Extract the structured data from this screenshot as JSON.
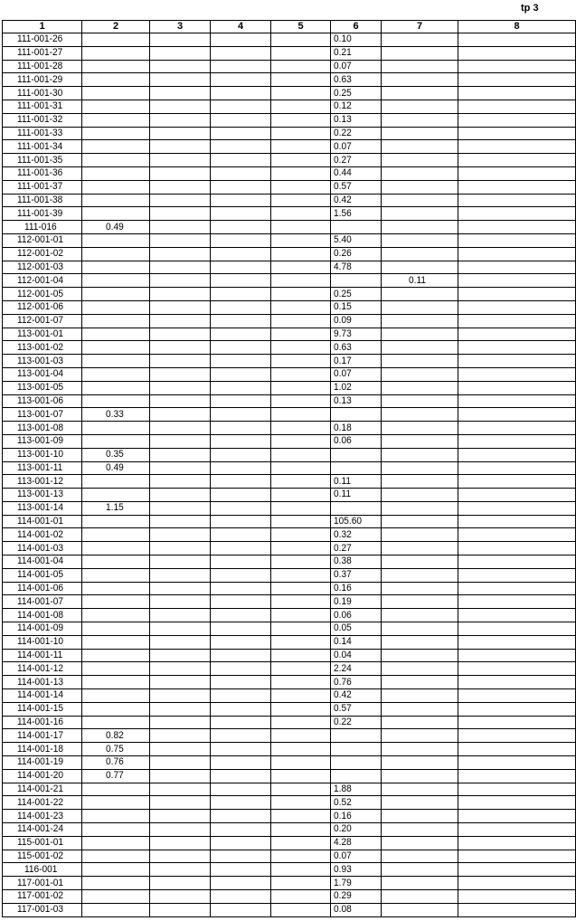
{
  "page_label": "tp 3",
  "table": {
    "headers": [
      "1",
      "2",
      "3",
      "4",
      "5",
      "6",
      "7",
      "8"
    ],
    "rows": [
      [
        "111-001-26",
        "",
        "",
        "",
        "",
        "0.10",
        "",
        ""
      ],
      [
        "111-001-27",
        "",
        "",
        "",
        "",
        "0.21",
        "",
        ""
      ],
      [
        "111-001-28",
        "",
        "",
        "",
        "",
        "0.07",
        "",
        ""
      ],
      [
        "111-001-29",
        "",
        "",
        "",
        "",
        "0.63",
        "",
        ""
      ],
      [
        "111-001-30",
        "",
        "",
        "",
        "",
        "0.25",
        "",
        ""
      ],
      [
        "111-001-31",
        "",
        "",
        "",
        "",
        "0.12",
        "",
        ""
      ],
      [
        "111-001-32",
        "",
        "",
        "",
        "",
        "0.13",
        "",
        ""
      ],
      [
        "111-001-33",
        "",
        "",
        "",
        "",
        "0.22",
        "",
        ""
      ],
      [
        "111-001-34",
        "",
        "",
        "",
        "",
        "0.07",
        "",
        ""
      ],
      [
        "111-001-35",
        "",
        "",
        "",
        "",
        "0.27",
        "",
        ""
      ],
      [
        "111-001-36",
        "",
        "",
        "",
        "",
        "0.44",
        "",
        ""
      ],
      [
        "111-001-37",
        "",
        "",
        "",
        "",
        "0.57",
        "",
        ""
      ],
      [
        "111-001-38",
        "",
        "",
        "",
        "",
        "0.42",
        "",
        ""
      ],
      [
        "111-001-39",
        "",
        "",
        "",
        "",
        "1.56",
        "",
        ""
      ],
      [
        "111-016",
        "0.49",
        "",
        "",
        "",
        "",
        "",
        ""
      ],
      [
        "112-001-01",
        "",
        "",
        "",
        "",
        "5.40",
        "",
        ""
      ],
      [
        "112-001-02",
        "",
        "",
        "",
        "",
        "0.26",
        "",
        ""
      ],
      [
        "112-001-03",
        "",
        "",
        "",
        "",
        "4.78",
        "",
        ""
      ],
      [
        "112-001-04",
        "",
        "",
        "",
        "",
        "",
        "0.11",
        ""
      ],
      [
        "112-001-05",
        "",
        "",
        "",
        "",
        "0.25",
        "",
        ""
      ],
      [
        "112-001-06",
        "",
        "",
        "",
        "",
        "0.15",
        "",
        ""
      ],
      [
        "112-001-07",
        "",
        "",
        "",
        "",
        "0.09",
        "",
        ""
      ],
      [
        "113-001-01",
        "",
        "",
        "",
        "",
        "9.73",
        "",
        ""
      ],
      [
        "113-001-02",
        "",
        "",
        "",
        "",
        "0.63",
        "",
        ""
      ],
      [
        "113-001-03",
        "",
        "",
        "",
        "",
        "0.17",
        "",
        ""
      ],
      [
        "113-001-04",
        "",
        "",
        "",
        "",
        "0.07",
        "",
        ""
      ],
      [
        "113-001-05",
        "",
        "",
        "",
        "",
        "1.02",
        "",
        ""
      ],
      [
        "113-001-06",
        "",
        "",
        "",
        "",
        "0.13",
        "",
        ""
      ],
      [
        "113-001-07",
        "0.33",
        "",
        "",
        "",
        "",
        "",
        ""
      ],
      [
        "113-001-08",
        "",
        "",
        "",
        "",
        "0.18",
        "",
        ""
      ],
      [
        "113-001-09",
        "",
        "",
        "",
        "",
        "0.06",
        "",
        ""
      ],
      [
        "113-001-10",
        "0.35",
        "",
        "",
        "",
        "",
        "",
        ""
      ],
      [
        "113-001-11",
        "0.49",
        "",
        "",
        "",
        "",
        "",
        ""
      ],
      [
        "113-001-12",
        "",
        "",
        "",
        "",
        "0.11",
        "",
        ""
      ],
      [
        "113-001-13",
        "",
        "",
        "",
        "",
        "0.11",
        "",
        ""
      ],
      [
        "113-001-14",
        "1.15",
        "",
        "",
        "",
        "",
        "",
        ""
      ],
      [
        "114-001-01",
        "",
        "",
        "",
        "",
        "105.60",
        "",
        ""
      ],
      [
        "114-001-02",
        "",
        "",
        "",
        "",
        "0.32",
        "",
        ""
      ],
      [
        "114-001-03",
        "",
        "",
        "",
        "",
        "0.27",
        "",
        ""
      ],
      [
        "114-001-04",
        "",
        "",
        "",
        "",
        "0.38",
        "",
        ""
      ],
      [
        "114-001-05",
        "",
        "",
        "",
        "",
        "0.37",
        "",
        ""
      ],
      [
        "114-001-06",
        "",
        "",
        "",
        "",
        "0.16",
        "",
        ""
      ],
      [
        "114-001-07",
        "",
        "",
        "",
        "",
        "0.19",
        "",
        ""
      ],
      [
        "114-001-08",
        "",
        "",
        "",
        "",
        "0.06",
        "",
        ""
      ],
      [
        "114-001-09",
        "",
        "",
        "",
        "",
        "0.05",
        "",
        ""
      ],
      [
        "114-001-10",
        "",
        "",
        "",
        "",
        "0.14",
        "",
        ""
      ],
      [
        "114-001-11",
        "",
        "",
        "",
        "",
        "0.04",
        "",
        ""
      ],
      [
        "114-001-12",
        "",
        "",
        "",
        "",
        "2.24",
        "",
        ""
      ],
      [
        "114-001-13",
        "",
        "",
        "",
        "",
        "0.76",
        "",
        ""
      ],
      [
        "114-001-14",
        "",
        "",
        "",
        "",
        "0.42",
        "",
        ""
      ],
      [
        "114-001-15",
        "",
        "",
        "",
        "",
        "0.57",
        "",
        ""
      ],
      [
        "114-001-16",
        "",
        "",
        "",
        "",
        "0.22",
        "",
        ""
      ],
      [
        "114-001-17",
        "0.82",
        "",
        "",
        "",
        "",
        "",
        ""
      ],
      [
        "114-001-18",
        "0.75",
        "",
        "",
        "",
        "",
        "",
        ""
      ],
      [
        "114-001-19",
        "0.76",
        "",
        "",
        "",
        "",
        "",
        ""
      ],
      [
        "114-001-20",
        "0.77",
        "",
        "",
        "",
        "",
        "",
        ""
      ],
      [
        "114-001-21",
        "",
        "",
        "",
        "",
        "1.88",
        "",
        ""
      ],
      [
        "114-001-22",
        "",
        "",
        "",
        "",
        "0.52",
        "",
        ""
      ],
      [
        "114-001-23",
        "",
        "",
        "",
        "",
        "0.16",
        "",
        ""
      ],
      [
        "114-001-24",
        "",
        "",
        "",
        "",
        "0.20",
        "",
        ""
      ],
      [
        "115-001-01",
        "",
        "",
        "",
        "",
        "4.28",
        "",
        ""
      ],
      [
        "115-001-02",
        "",
        "",
        "",
        "",
        "0.07",
        "",
        ""
      ],
      [
        "116-001",
        "",
        "",
        "",
        "",
        "0.93",
        "",
        ""
      ],
      [
        "117-001-01",
        "",
        "",
        "",
        "",
        "1.79",
        "",
        ""
      ],
      [
        "117-001-02",
        "",
        "",
        "",
        "",
        "0.29",
        "",
        ""
      ],
      [
        "117-001-03",
        "",
        "",
        "",
        "",
        "0.08",
        "",
        ""
      ]
    ]
  }
}
